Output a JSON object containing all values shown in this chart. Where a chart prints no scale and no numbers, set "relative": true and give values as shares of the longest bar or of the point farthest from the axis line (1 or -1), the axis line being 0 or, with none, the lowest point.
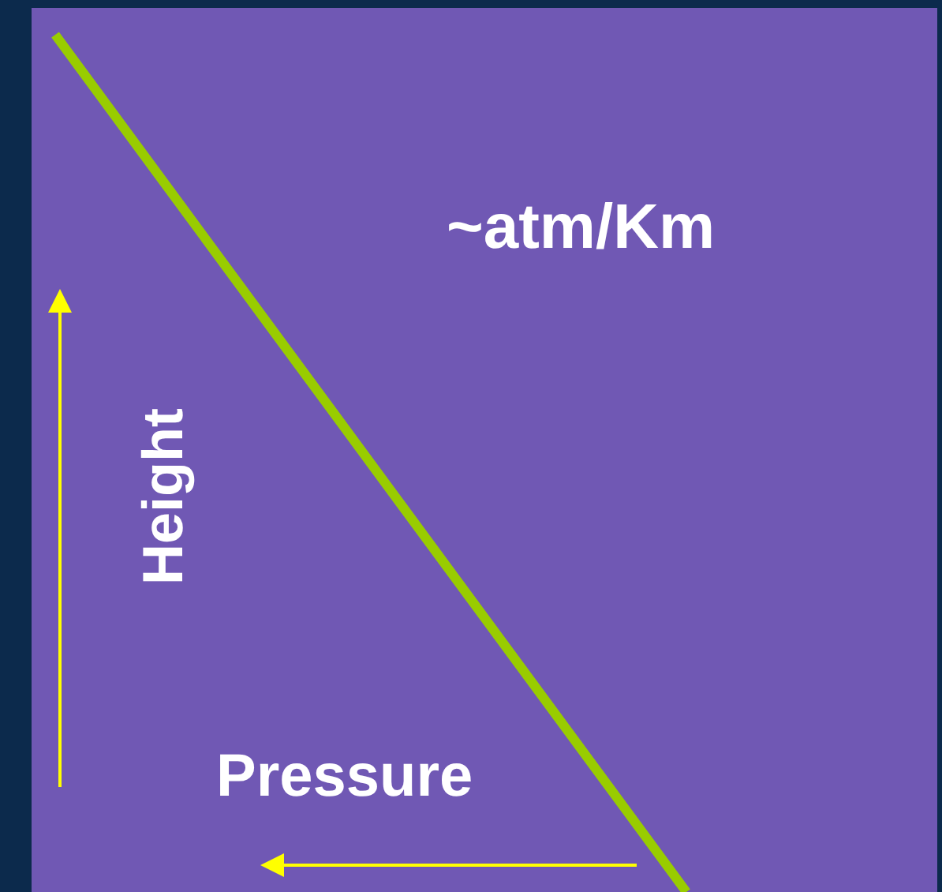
{
  "chart_data": {
    "type": "line",
    "relative": true,
    "xlabel": "Pressure",
    "ylabel": "Height",
    "annotations": [
      "~atm/Km"
    ],
    "categories": [
      null,
      null
    ],
    "series": [
      {
        "color": "#99cc00",
        "values": [
          1,
          0
        ]
      }
    ]
  }
}
